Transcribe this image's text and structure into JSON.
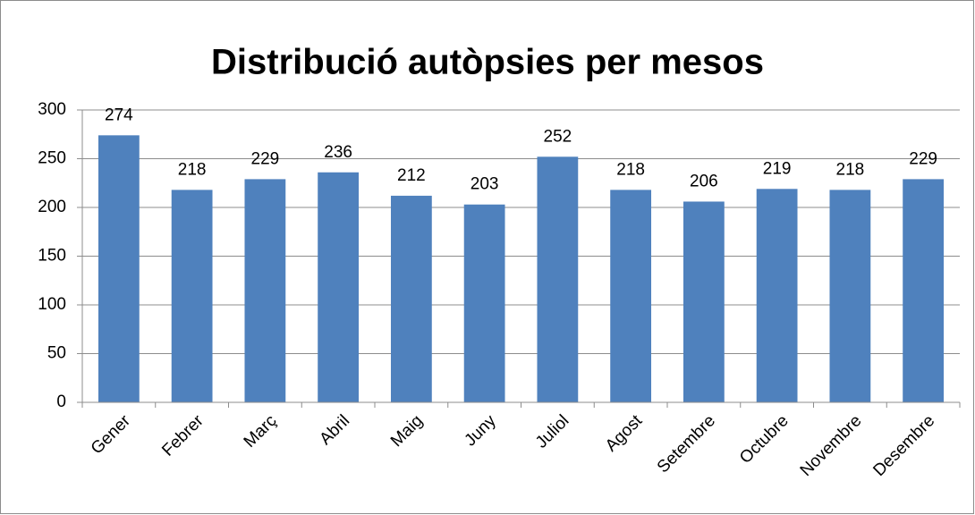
{
  "chart_data": {
    "type": "bar",
    "title": "Distribució autòpsies per mesos",
    "categories": [
      "Gener",
      "Febrer",
      "Març",
      "Abril",
      "Maig",
      "Juny",
      "Juliol",
      "Agost",
      "Setembre",
      "Octubre",
      "Novembre",
      "Desembre"
    ],
    "values": [
      274,
      218,
      229,
      236,
      212,
      203,
      252,
      218,
      206,
      219,
      218,
      229
    ],
    "color": "#4f81bd",
    "ylim": [
      0,
      300
    ],
    "yticks": [
      0,
      50,
      100,
      150,
      200,
      250,
      300
    ],
    "grid": true
  }
}
